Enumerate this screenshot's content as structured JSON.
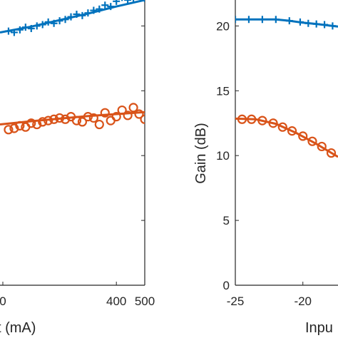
{
  "chart_data": [
    {
      "type": "scatter",
      "xlabel": "t (mA)",
      "ylabel": "",
      "xlim": [
        -10,
        500
      ],
      "ylim": [
        0,
        22
      ],
      "x_ticks": [
        {
          "value": 0,
          "label": "0"
        },
        {
          "value": 400,
          "label": "400"
        },
        {
          "value": 500,
          "label": "500"
        }
      ],
      "y_ticks": [],
      "series": [
        {
          "color": "#0072BD",
          "marker": "plus",
          "points": [
            [
              20,
              19.6
            ],
            [
              40,
              19.5
            ],
            [
              60,
              19.7
            ],
            [
              80,
              19.9
            ],
            [
              100,
              19.8
            ],
            [
              120,
              20.0
            ],
            [
              140,
              20.1
            ],
            [
              160,
              20.3
            ],
            [
              180,
              20.2
            ],
            [
              200,
              20.4
            ],
            [
              220,
              20.5
            ],
            [
              240,
              20.7
            ],
            [
              260,
              20.9
            ],
            [
              280,
              20.8
            ],
            [
              300,
              21.0
            ],
            [
              320,
              21.2
            ],
            [
              340,
              21.3
            ],
            [
              360,
              21.6
            ],
            [
              380,
              21.5
            ],
            [
              400,
              21.9
            ],
            [
              420,
              22.2
            ],
            [
              440,
              22.0
            ],
            [
              460,
              22.1
            ],
            [
              480,
              22.4
            ],
            [
              500,
              22.1
            ]
          ],
          "fit": [
            [
              -10,
              19.5
            ],
            [
              100,
              19.95
            ],
            [
              200,
              20.45
            ],
            [
              300,
              20.95
            ],
            [
              400,
              21.5
            ],
            [
              500,
              22.0
            ]
          ]
        },
        {
          "color": "#D95319",
          "marker": "circle",
          "points": [
            [
              20,
              12.0
            ],
            [
              40,
              12.1
            ],
            [
              60,
              12.3
            ],
            [
              80,
              12.2
            ],
            [
              100,
              12.5
            ],
            [
              120,
              12.4
            ],
            [
              140,
              12.6
            ],
            [
              160,
              12.7
            ],
            [
              180,
              12.8
            ],
            [
              200,
              12.9
            ],
            [
              220,
              12.8
            ],
            [
              240,
              13.0
            ],
            [
              260,
              12.7
            ],
            [
              280,
              12.6
            ],
            [
              300,
              13.0
            ],
            [
              320,
              12.9
            ],
            [
              340,
              12.4
            ],
            [
              360,
              13.3
            ],
            [
              380,
              12.7
            ],
            [
              400,
              13.0
            ],
            [
              420,
              13.5
            ],
            [
              440,
              13.1
            ],
            [
              460,
              13.7
            ],
            [
              480,
              13.2
            ],
            [
              500,
              12.8
            ]
          ],
          "fit": [
            [
              -10,
              12.4
            ],
            [
              100,
              12.65
            ],
            [
              200,
              12.85
            ],
            [
              300,
              13.05
            ],
            [
              400,
              13.2
            ],
            [
              500,
              13.35
            ]
          ]
        }
      ]
    },
    {
      "type": "line",
      "xlabel": "Inpu",
      "ylabel": "Gain (dB)",
      "xlim": [
        -25,
        -17.4
      ],
      "ylim": [
        0,
        22
      ],
      "x_ticks": [
        {
          "value": -25,
          "label": "-25"
        },
        {
          "value": -20,
          "label": "-20"
        }
      ],
      "y_ticks": [
        {
          "value": 0,
          "label": "0"
        },
        {
          "value": 5,
          "label": "5"
        },
        {
          "value": 10,
          "label": "10"
        },
        {
          "value": 15,
          "label": "15"
        },
        {
          "value": 20,
          "label": "20"
        }
      ],
      "series": [
        {
          "color": "#0072BD",
          "marker": "plus",
          "points": [
            [
              -25,
              20.5
            ],
            [
              -24,
              20.5
            ],
            [
              -23,
              20.5
            ],
            [
              -22,
              20.5
            ],
            [
              -21,
              20.4
            ],
            [
              -20.2,
              20.3
            ],
            [
              -19.6,
              20.2
            ],
            [
              -19.0,
              20.15
            ],
            [
              -18.4,
              20.1
            ],
            [
              -17.8,
              20.0
            ]
          ],
          "fit": [
            [
              -25,
              20.5
            ],
            [
              -22,
              20.5
            ],
            [
              -21,
              20.4
            ],
            [
              -20,
              20.25
            ],
            [
              -19,
              20.15
            ],
            [
              -17.4,
              19.95
            ]
          ]
        },
        {
          "color": "#D95319",
          "marker": "circle",
          "points": [
            [
              -24.5,
              12.8
            ],
            [
              -23.8,
              12.8
            ],
            [
              -23.0,
              12.7
            ],
            [
              -22.2,
              12.5
            ],
            [
              -21.5,
              12.2
            ],
            [
              -20.8,
              11.9
            ],
            [
              -20.0,
              11.5
            ],
            [
              -19.3,
              11.1
            ],
            [
              -18.6,
              10.7
            ],
            [
              -17.9,
              10.2
            ]
          ],
          "fit": [
            [
              -25,
              12.85
            ],
            [
              -23.5,
              12.8
            ],
            [
              -22,
              12.45
            ],
            [
              -20.5,
              11.75
            ],
            [
              -19,
              10.9
            ],
            [
              -17.4,
              9.9
            ]
          ]
        }
      ]
    }
  ]
}
